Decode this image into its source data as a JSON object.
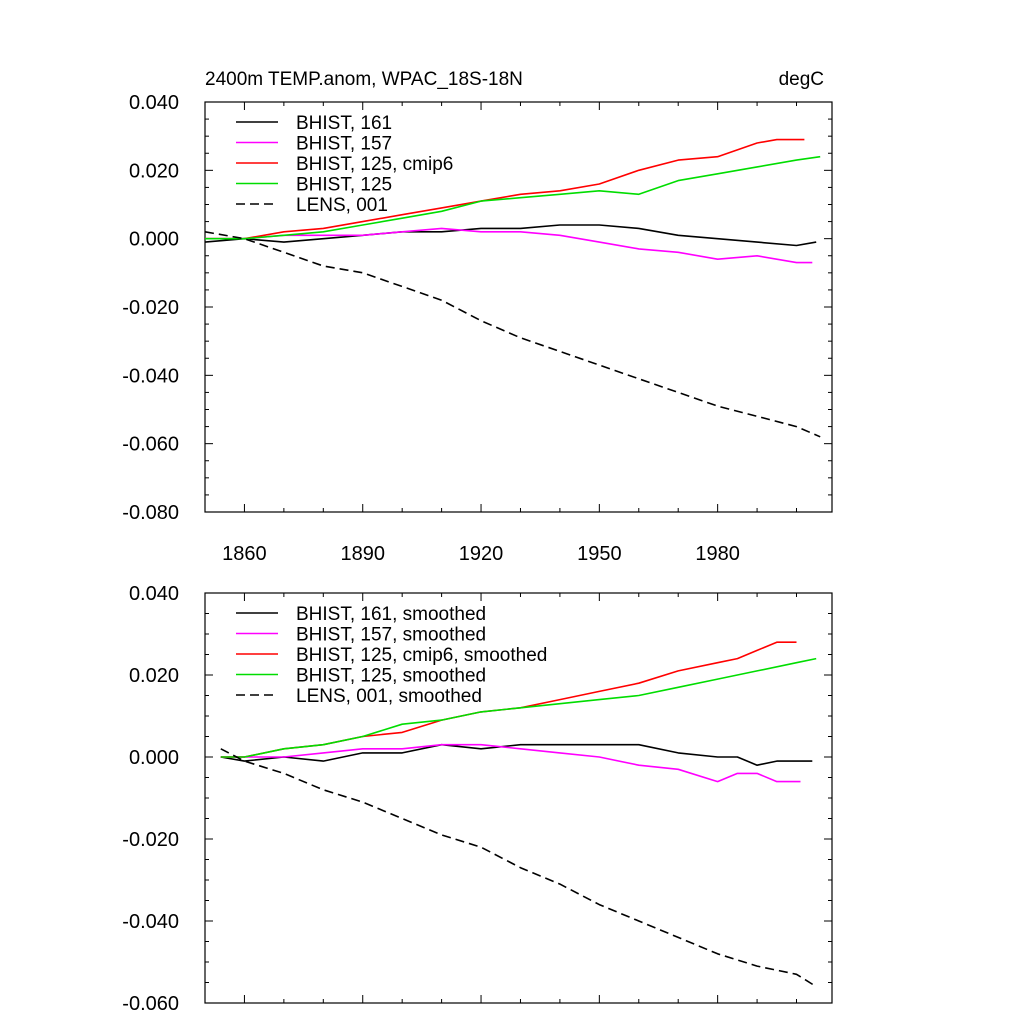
{
  "chart_data": [
    {
      "type": "line",
      "title": "2400m TEMP.anom, WPAC_18S-18N",
      "units": "degC",
      "xlim": [
        1850,
        2009
      ],
      "ylim": [
        -0.08,
        0.04
      ],
      "xticks": [
        1860,
        1890,
        1920,
        1950,
        1980
      ],
      "xtick_labels": [
        "1860",
        "1890",
        "1920",
        "1950",
        "1980"
      ],
      "yticks": [
        0.04,
        0.02,
        0.0,
        -0.02,
        -0.04,
        -0.06,
        -0.08
      ],
      "ytick_labels": [
        "0.040",
        "0.020",
        "0.000",
        "-0.020",
        "-0.040",
        "-0.060",
        "-0.080"
      ],
      "legend_position": "top-left",
      "series": [
        {
          "name": "BHIST, 161",
          "color": "#000000",
          "dash": "solid",
          "x": [
            1850,
            1860,
            1870,
            1880,
            1890,
            1900,
            1910,
            1920,
            1930,
            1940,
            1950,
            1960,
            1970,
            1980,
            1990,
            2000,
            2005
          ],
          "y": [
            -0.001,
            0.0,
            -0.001,
            0.0,
            0.001,
            0.002,
            0.002,
            0.003,
            0.003,
            0.004,
            0.004,
            0.003,
            0.001,
            0.0,
            -0.001,
            -0.002,
            -0.001
          ]
        },
        {
          "name": "BHIST, 157",
          "color": "#ff00ff",
          "dash": "solid",
          "x": [
            1850,
            1860,
            1870,
            1880,
            1890,
            1900,
            1910,
            1920,
            1930,
            1940,
            1950,
            1960,
            1970,
            1980,
            1990,
            2000,
            2004
          ],
          "y": [
            0.0,
            0.0,
            0.001,
            0.001,
            0.001,
            0.002,
            0.003,
            0.002,
            0.002,
            0.001,
            -0.001,
            -0.003,
            -0.004,
            -0.006,
            -0.005,
            -0.007,
            -0.007
          ]
        },
        {
          "name": "BHIST, 125, cmip6",
          "color": "#ff0000",
          "dash": "solid",
          "x": [
            1850,
            1860,
            1870,
            1880,
            1890,
            1900,
            1910,
            1920,
            1930,
            1940,
            1950,
            1960,
            1970,
            1980,
            1990,
            1995,
            2002
          ],
          "y": [
            0.0,
            0.0,
            0.002,
            0.003,
            0.005,
            0.007,
            0.009,
            0.011,
            0.013,
            0.014,
            0.016,
            0.02,
            0.023,
            0.024,
            0.028,
            0.029,
            0.029
          ]
        },
        {
          "name": "BHIST, 125",
          "color": "#00dd00",
          "dash": "solid",
          "x": [
            1850,
            1860,
            1870,
            1880,
            1890,
            1900,
            1910,
            1920,
            1930,
            1940,
            1950,
            1960,
            1970,
            1980,
            1990,
            2000,
            2006
          ],
          "y": [
            0.0,
            0.0,
            0.001,
            0.002,
            0.004,
            0.006,
            0.008,
            0.011,
            0.012,
            0.013,
            0.014,
            0.013,
            0.017,
            0.019,
            0.021,
            0.023,
            0.024
          ]
        },
        {
          "name": "LENS, 001",
          "color": "#000000",
          "dash": "dashed",
          "x": [
            1850,
            1860,
            1870,
            1880,
            1890,
            1900,
            1910,
            1920,
            1930,
            1940,
            1950,
            1960,
            1970,
            1980,
            1990,
            2000,
            2006
          ],
          "y": [
            0.002,
            0.0,
            -0.004,
            -0.008,
            -0.01,
            -0.014,
            -0.018,
            -0.024,
            -0.029,
            -0.033,
            -0.037,
            -0.041,
            -0.045,
            -0.049,
            -0.052,
            -0.055,
            -0.058
          ]
        }
      ]
    },
    {
      "type": "line",
      "xlim": [
        1850,
        2009
      ],
      "ylim": [
        -0.06,
        0.04
      ],
      "xticks": [
        1860,
        1890,
        1920,
        1950,
        1980
      ],
      "yticks": [
        0.04,
        0.02,
        0.0,
        -0.02,
        -0.04,
        -0.06
      ],
      "ytick_labels": [
        "0.040",
        "0.020",
        "0.000",
        "-0.020",
        "-0.040",
        "-0.060"
      ],
      "legend_position": "top-left",
      "series": [
        {
          "name": "BHIST, 161, smoothed",
          "color": "#000000",
          "dash": "solid",
          "x": [
            1854,
            1860,
            1870,
            1880,
            1890,
            1900,
            1910,
            1920,
            1930,
            1940,
            1950,
            1960,
            1970,
            1980,
            1985,
            1990,
            1995,
            2000,
            2004
          ],
          "y": [
            0.0,
            -0.001,
            0.0,
            -0.001,
            0.001,
            0.001,
            0.003,
            0.002,
            0.003,
            0.003,
            0.003,
            0.003,
            0.001,
            0.0,
            0.0,
            -0.002,
            -0.001,
            -0.001,
            -0.001
          ]
        },
        {
          "name": "BHIST, 157, smoothed",
          "color": "#ff00ff",
          "dash": "solid",
          "x": [
            1854,
            1860,
            1870,
            1880,
            1890,
            1900,
            1910,
            1920,
            1930,
            1940,
            1950,
            1960,
            1970,
            1980,
            1985,
            1990,
            1995,
            2001
          ],
          "y": [
            0.0,
            0.0,
            0.0,
            0.001,
            0.002,
            0.002,
            0.003,
            0.003,
            0.002,
            0.001,
            0.0,
            -0.002,
            -0.003,
            -0.006,
            -0.004,
            -0.004,
            -0.006,
            -0.006
          ]
        },
        {
          "name": "BHIST, 125, cmip6, smoothed",
          "color": "#ff0000",
          "dash": "solid",
          "x": [
            1854,
            1860,
            1870,
            1880,
            1890,
            1900,
            1910,
            1920,
            1930,
            1940,
            1950,
            1960,
            1970,
            1980,
            1985,
            1990,
            1995,
            2000
          ],
          "y": [
            0.0,
            0.0,
            0.002,
            0.003,
            0.005,
            0.006,
            0.009,
            0.011,
            0.012,
            0.014,
            0.016,
            0.018,
            0.021,
            0.023,
            0.024,
            0.026,
            0.028,
            0.028
          ]
        },
        {
          "name": "BHIST, 125, smoothed",
          "color": "#00dd00",
          "dash": "solid",
          "x": [
            1854,
            1860,
            1870,
            1880,
            1890,
            1900,
            1910,
            1920,
            1930,
            1940,
            1950,
            1960,
            1970,
            1980,
            1990,
            2000,
            2005
          ],
          "y": [
            0.0,
            0.0,
            0.002,
            0.003,
            0.005,
            0.008,
            0.009,
            0.011,
            0.012,
            0.013,
            0.014,
            0.015,
            0.017,
            0.019,
            0.021,
            0.023,
            0.024
          ]
        },
        {
          "name": "LENS, 001, smoothed",
          "color": "#000000",
          "dash": "dashed",
          "x": [
            1854,
            1860,
            1870,
            1880,
            1890,
            1900,
            1910,
            1920,
            1930,
            1940,
            1950,
            1960,
            1970,
            1980,
            1990,
            2000,
            2005
          ],
          "y": [
            0.002,
            -0.001,
            -0.004,
            -0.008,
            -0.011,
            -0.015,
            -0.019,
            -0.022,
            -0.027,
            -0.031,
            -0.036,
            -0.04,
            -0.044,
            -0.048,
            -0.051,
            -0.053,
            -0.056
          ]
        }
      ]
    }
  ]
}
